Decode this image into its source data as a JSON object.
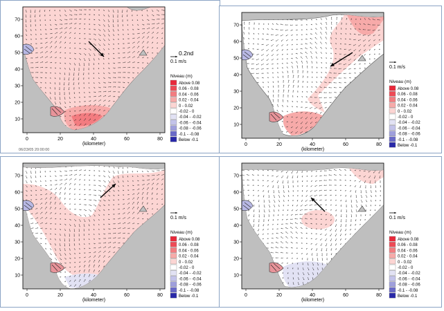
{
  "panels": [
    {
      "id": "tl",
      "y_ticks": [
        "70",
        "60",
        "50",
        "40",
        "30",
        "20",
        "10"
      ],
      "x_ticks": [
        "0",
        "20",
        "40",
        "60",
        "80"
      ],
      "x_label": "(kilometer)",
      "scale_text": "0.1 m/s",
      "extra_label": "0.2nd",
      "legend_title": "Niveau (m)",
      "timestamp": "06/23/05 20:00:00",
      "wind_dir": "down-right"
    },
    {
      "id": "tr",
      "y_ticks": [
        "70",
        "60",
        "50",
        "40",
        "30",
        "20",
        "10"
      ],
      "x_ticks": [
        "0",
        "20",
        "40",
        "60",
        "80"
      ],
      "x_label": "(kilometer)",
      "scale_text": "0.1 m/s",
      "legend_title": "Niveau (m)",
      "wind_dir": "down-left"
    },
    {
      "id": "bl",
      "y_ticks": [
        "70",
        "60",
        "50",
        "40",
        "30",
        "20",
        "10"
      ],
      "x_ticks": [
        "0",
        "20",
        "40",
        "60",
        "80"
      ],
      "x_label": "(kilometer)",
      "scale_text": "0.1 m/s",
      "legend_title": "Niveau (m)",
      "wind_dir": "up-right"
    },
    {
      "id": "br",
      "y_ticks": [
        "70",
        "60",
        "50",
        "40",
        "30",
        "20",
        "10"
      ],
      "x_ticks": [
        "0",
        "20",
        "40",
        "60",
        "80"
      ],
      "x_label": "(kilometer)",
      "scale_text": "0.1 m/s",
      "legend_title": "Niveau (m)",
      "wind_dir": "up-left"
    }
  ],
  "legend": [
    {
      "label": "Above  0.08",
      "color": "#e8283a"
    },
    {
      "label": "0.06 - 0.08",
      "color": "#ee4a55"
    },
    {
      "label": "0.04 - 0.06",
      "color": "#f37c80"
    },
    {
      "label": "0.02 - 0.04",
      "color": "#f7aaa9"
    },
    {
      "label": "0 - 0.02",
      "color": "#fcd5d3"
    },
    {
      "label": "-0.02 - 0",
      "color": "#ffffff"
    },
    {
      "label": "-0.04 - -0.02",
      "color": "#e2e2f4"
    },
    {
      "label": "-0.06 - -0.04",
      "color": "#c3c3ea"
    },
    {
      "label": "-0.08 - -0.06",
      "color": "#9f9fdc"
    },
    {
      "label": "-0.1 - -0.08",
      "color": "#6a6ac8"
    },
    {
      "label": "Below  -0.1",
      "color": "#2828a8"
    }
  ]
}
